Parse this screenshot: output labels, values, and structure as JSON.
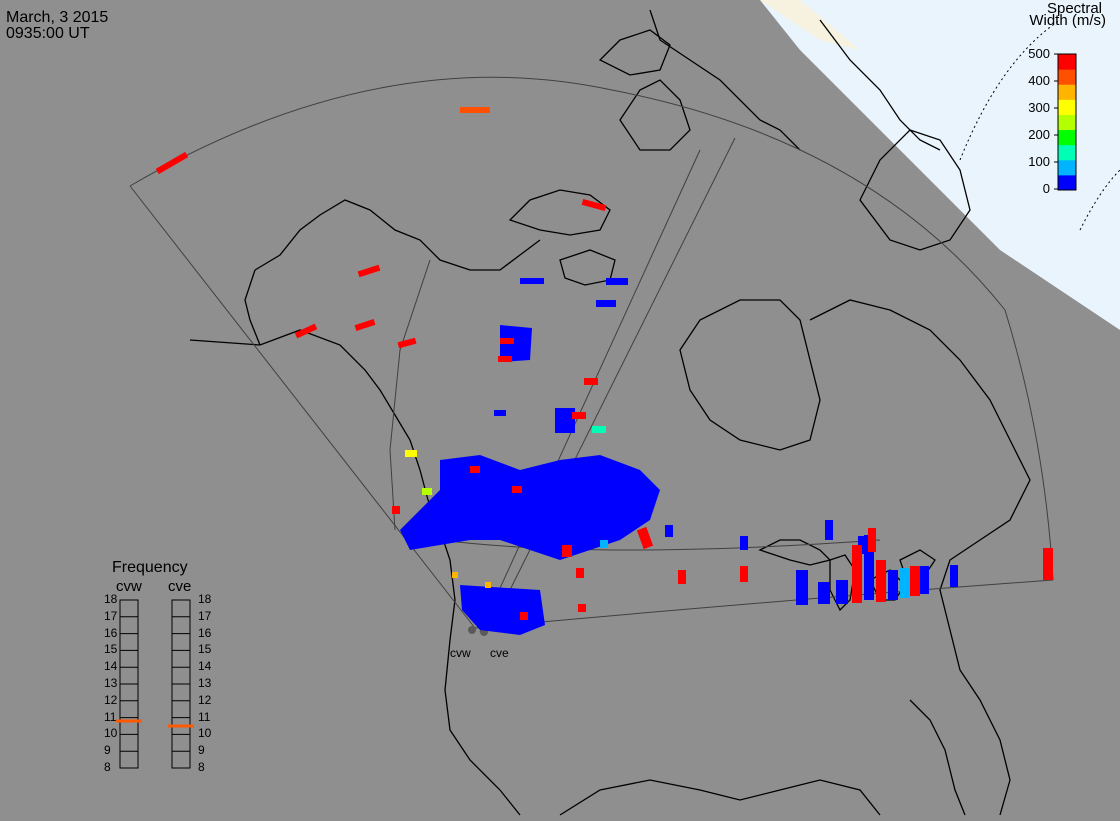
{
  "header": {
    "date": "March, 3 2015",
    "time": "0935:00 UT"
  },
  "colorbar": {
    "title_line1": "Spectral",
    "title_line2": "Width (m/s)",
    "ticks": [
      "500",
      "400",
      "300",
      "200",
      "100",
      "0"
    ],
    "colors": [
      "#0000ff",
      "#00b4ff",
      "#00ffb4",
      "#00ff00",
      "#b4ff00",
      "#ffff00",
      "#ffb400",
      "#ff5000",
      "#ff0000"
    ]
  },
  "frequency": {
    "title": "Frequency",
    "radars": [
      {
        "name": "cvw",
        "value_mhz": 10.8
      },
      {
        "name": "cve",
        "value_mhz": 10.5
      }
    ],
    "scale": [
      "18",
      "17",
      "16",
      "15",
      "14",
      "13",
      "12",
      "11",
      "10",
      "9",
      "8"
    ]
  },
  "radars": [
    {
      "name": "cvw"
    },
    {
      "name": "cve"
    }
  ],
  "colors": {
    "background": "#8f8f8f",
    "day_region": "#eaf4fc",
    "land_outline": "#000000",
    "marker_fill": "#ff5a00"
  }
}
